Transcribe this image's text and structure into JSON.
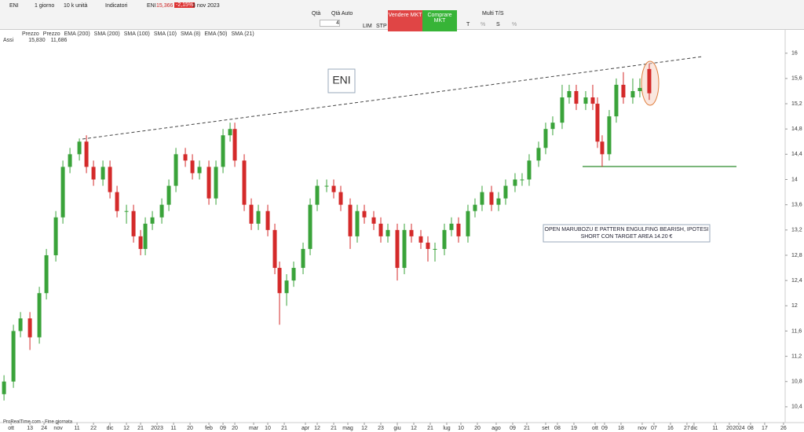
{
  "toolbar": {
    "symbol": "ENI",
    "period": "1 giorno",
    "units": "10 k unità",
    "indicators": "Indicatori",
    "ticker": "ENI",
    "last": "15,366",
    "change": "-2,15%",
    "date": "3 nov 2023",
    "qty_label": "Qtà",
    "qty_auto": "Qtà Auto",
    "qty": "4",
    "lim": "LIM",
    "stp": "STP",
    "sell": "Vendere MKT",
    "buy": "Comprare MKT",
    "multi": "Multi T/S",
    "t": "T",
    "s": "S",
    "pct1": "%",
    "pct2": "%"
  },
  "legend_row": [
    "Prezzo",
    "Prezzo",
    "EMA (200)",
    "SMA (200)",
    "SMA (100)",
    "SMA (10)",
    "SMA (8)",
    "EMA (50)",
    "SMA (21)"
  ],
  "info_row": {
    "axis": "Assi",
    "high": "15,830",
    "low": "11,686"
  },
  "footer": "ProRealTime.com - Fine giornata",
  "chart_data": {
    "type": "candlestick",
    "title": "ENI",
    "annotation": "OPEN MARUBOZU E PATTERN ENGULFING BEARISH, IPOTESI SHORT CON TARGET AREA 14.20 €",
    "up_color": "#3aa33a",
    "down_color": "#d42a2a",
    "x": [
      0,
      4,
      7,
      11,
      15,
      18,
      22,
      25,
      28,
      32,
      35,
      38,
      42,
      45,
      48,
      52,
      55,
      58,
      60,
      63,
      67,
      70,
      73,
      77,
      80,
      83,
      87,
      90,
      93,
      96,
      98,
      102,
      105,
      108,
      112,
      115,
      117,
      120,
      123,
      127,
      130,
      133,
      137,
      140,
      143,
      147,
      150,
      153,
      157,
      160,
      163,
      167,
      170,
      173,
      177,
      180,
      183,
      187,
      190,
      193,
      197,
      200,
      203,
      207,
      210,
      213,
      217,
      220,
      223,
      227,
      230,
      233,
      237,
      240,
      243,
      247,
      250,
      252,
      254,
      257,
      260,
      263,
      267,
      270,
      274
    ],
    "open": [
      10.6,
      10.8,
      11.6,
      11.8,
      11.5,
      12.2,
      12.8,
      13.4,
      14.2,
      14.4,
      14.6,
      14.2,
      14.0,
      14.2,
      13.8,
      13.5,
      13.5,
      13.1,
      12.9,
      13.3,
      13.4,
      13.6,
      13.9,
      14.4,
      14.3,
      14.1,
      14.2,
      13.7,
      14.2,
      14.7,
      14.8,
      14.3,
      13.6,
      13.3,
      13.5,
      13.2,
      12.6,
      12.2,
      12.4,
      12.6,
      12.9,
      13.6,
      13.9,
      13.9,
      13.8,
      13.6,
      13.1,
      13.5,
      13.4,
      13.3,
      13.1,
      13.2,
      12.6,
      13.2,
      13.1,
      13.0,
      12.9,
      12.9,
      13.2,
      13.3,
      13.1,
      13.5,
      13.6,
      13.8,
      13.6,
      13.7,
      13.9,
      14.0,
      14.0,
      14.3,
      14.5,
      14.8,
      14.9,
      15.3,
      15.4,
      15.2,
      15.3,
      15.2,
      14.6,
      14.4,
      15.0,
      15.5,
      15.3,
      15.4,
      15.75
    ],
    "high": [
      10.9,
      11.7,
      11.9,
      11.9,
      12.3,
      12.9,
      13.5,
      14.3,
      14.5,
      14.65,
      14.7,
      14.3,
      14.3,
      14.3,
      13.9,
      13.6,
      13.6,
      13.2,
      13.4,
      13.5,
      13.7,
      14.0,
      14.5,
      14.5,
      14.4,
      14.3,
      14.3,
      14.3,
      14.8,
      14.9,
      14.9,
      14.4,
      13.7,
      13.6,
      13.6,
      13.3,
      12.7,
      12.5,
      12.7,
      13.0,
      13.7,
      14.0,
      14.0,
      14.0,
      13.9,
      13.7,
      13.6,
      13.6,
      13.5,
      13.4,
      13.3,
      13.3,
      13.3,
      13.3,
      13.2,
      13.1,
      13.0,
      13.3,
      13.4,
      13.4,
      13.6,
      13.7,
      13.9,
      13.9,
      13.8,
      14.0,
      14.1,
      14.1,
      14.4,
      14.6,
      14.9,
      15.0,
      15.5,
      15.5,
      15.5,
      15.4,
      15.5,
      15.3,
      14.7,
      15.1,
      15.6,
      15.7,
      15.6,
      15.6,
      15.83
    ],
    "low": [
      10.5,
      10.7,
      11.5,
      11.3,
      11.4,
      12.1,
      12.7,
      13.3,
      14.1,
      14.3,
      14.1,
      13.9,
      13.9,
      13.7,
      13.4,
      13.3,
      13.0,
      12.8,
      12.8,
      13.2,
      13.3,
      13.5,
      13.8,
      14.2,
      14.0,
      14.0,
      13.6,
      13.6,
      14.1,
      14.6,
      14.2,
      13.5,
      13.2,
      13.2,
      13.1,
      12.5,
      11.7,
      12.0,
      12.3,
      12.5,
      12.8,
      13.5,
      13.8,
      13.7,
      13.5,
      12.9,
      13.0,
      13.3,
      13.2,
      13.0,
      13.0,
      12.4,
      12.5,
      13.0,
      12.9,
      12.7,
      12.7,
      12.8,
      13.1,
      13.0,
      13.0,
      13.4,
      13.5,
      13.5,
      13.5,
      13.6,
      13.8,
      13.9,
      13.9,
      14.2,
      14.4,
      14.7,
      14.8,
      15.2,
      15.1,
      15.1,
      15.1,
      14.5,
      14.2,
      14.3,
      14.9,
      15.2,
      15.2,
      15.3,
      15.26
    ],
    "close": [
      10.8,
      11.6,
      11.8,
      11.5,
      12.2,
      12.8,
      13.4,
      14.2,
      14.4,
      14.6,
      14.2,
      14.0,
      14.2,
      13.8,
      13.5,
      13.5,
      13.1,
      12.9,
      13.3,
      13.4,
      13.6,
      13.9,
      14.4,
      14.3,
      14.1,
      14.2,
      13.7,
      14.2,
      14.7,
      14.8,
      14.3,
      13.6,
      13.3,
      13.5,
      13.2,
      12.6,
      12.2,
      12.4,
      12.6,
      12.9,
      13.6,
      13.9,
      13.9,
      13.8,
      13.6,
      13.1,
      13.5,
      13.4,
      13.3,
      13.1,
      13.2,
      12.6,
      13.2,
      13.1,
      13.0,
      12.9,
      12.9,
      13.2,
      13.3,
      13.1,
      13.5,
      13.6,
      13.8,
      13.6,
      13.7,
      13.9,
      14.0,
      14.0,
      14.3,
      14.5,
      14.8,
      14.9,
      15.3,
      15.4,
      15.2,
      15.3,
      15.2,
      14.6,
      14.4,
      15.0,
      15.5,
      15.3,
      15.4,
      15.45,
      15.366
    ],
    "xlim": [
      -1.7,
      331.7
    ],
    "xticks": [
      {
        "value": 3,
        "label": "ott"
      },
      {
        "value": 11,
        "label": "13"
      },
      {
        "value": 17,
        "label": "24"
      },
      {
        "value": 23,
        "label": "nov"
      },
      {
        "value": 31,
        "label": "11"
      },
      {
        "value": 38,
        "label": "22"
      },
      {
        "value": 45,
        "label": "dic"
      },
      {
        "value": 52,
        "label": "12"
      },
      {
        "value": 58,
        "label": "21"
      },
      {
        "value": 65,
        "label": "2023"
      },
      {
        "value": 72,
        "label": "11"
      },
      {
        "value": 79,
        "label": "20"
      },
      {
        "value": 87,
        "label": "feb"
      },
      {
        "value": 93,
        "label": "09"
      },
      {
        "value": 98,
        "label": "20"
      },
      {
        "value": 106,
        "label": "mar"
      },
      {
        "value": 112,
        "label": "10"
      },
      {
        "value": 119,
        "label": "21"
      },
      {
        "value": 128,
        "label": "apr"
      },
      {
        "value": 133,
        "label": "12"
      },
      {
        "value": 140,
        "label": "21"
      },
      {
        "value": 146,
        "label": "mag"
      },
      {
        "value": 153,
        "label": "12"
      },
      {
        "value": 160,
        "label": "23"
      },
      {
        "value": 167,
        "label": "giu"
      },
      {
        "value": 174,
        "label": "12"
      },
      {
        "value": 181,
        "label": "21"
      },
      {
        "value": 188,
        "label": "lug"
      },
      {
        "value": 194,
        "label": "10"
      },
      {
        "value": 201,
        "label": "20"
      },
      {
        "value": 209,
        "label": "ago"
      },
      {
        "value": 216,
        "label": "09"
      },
      {
        "value": 222,
        "label": "21"
      },
      {
        "value": 230,
        "label": "set"
      },
      {
        "value": 235,
        "label": "08"
      },
      {
        "value": 242,
        "label": "19"
      },
      {
        "value": 251,
        "label": "ott"
      },
      {
        "value": 255,
        "label": "09"
      },
      {
        "value": 262,
        "label": "18"
      },
      {
        "value": 271,
        "label": "nov"
      },
      {
        "value": 276,
        "label": "07"
      },
      {
        "value": 283,
        "label": "16"
      },
      {
        "value": 290,
        "label": "27"
      },
      {
        "value": 293,
        "label": "dic"
      },
      {
        "value": 302,
        "label": "11"
      },
      {
        "value": 308,
        "label": "20"
      },
      {
        "value": 312,
        "label": "2024"
      },
      {
        "value": 317,
        "label": "08"
      },
      {
        "value": 323,
        "label": "17"
      },
      {
        "value": 331,
        "label": "26"
      }
    ],
    "ylim": [
      10.15,
      16.37
    ],
    "yticks": [
      16,
      {
        "value": 15.6,
        "label": "15,6"
      },
      {
        "value": 15.2,
        "label": "15,2"
      },
      {
        "value": 14.8,
        "label": "14,8"
      },
      {
        "value": 14.4,
        "label": "14,4"
      },
      14,
      {
        "value": 13.6,
        "label": "13,6"
      },
      {
        "value": 13.2,
        "label": "13,2"
      },
      {
        "value": 12.8,
        "label": "12,8"
      },
      {
        "value": 12.4,
        "label": "12,4"
      },
      12,
      {
        "value": 11.6,
        "label": "11,6"
      },
      {
        "value": 11.2,
        "label": "11,2"
      },
      {
        "value": 10.8,
        "label": "10,8"
      },
      {
        "value": 10.4,
        "label": "10,4"
      }
    ]
  }
}
